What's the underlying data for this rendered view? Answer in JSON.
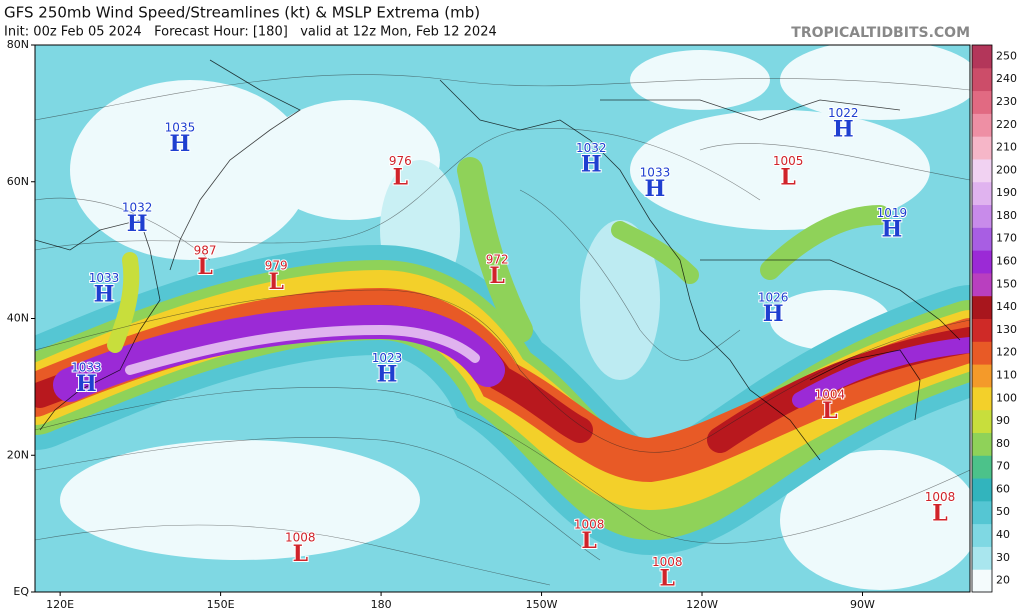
{
  "header": {
    "title": "GFS 250mb Wind Speed/Streamlines (kt) & MSLP Extrema (mb)",
    "subtitle": "Init: 00z Feb 05 2024   Forecast Hour: [180]   valid at 12z Mon, Feb 12 2024",
    "watermark": "TROPICALTIDBITS.COM"
  },
  "map": {
    "lonlim": [
      115.3,
      290.1
    ],
    "latlim": [
      0,
      80
    ],
    "lonticks": [
      {
        "value": 120,
        "label": "120E"
      },
      {
        "value": 150,
        "label": "150E"
      },
      180,
      {
        "value": 210,
        "label": "150W"
      },
      {
        "value": 240,
        "label": "120W"
      },
      {
        "value": 270,
        "label": "90W"
      }
    ],
    "latticks": [
      {
        "value": 80,
        "label": "80N"
      },
      {
        "value": 60,
        "label": "60N"
      },
      {
        "value": 40,
        "label": "40N"
      },
      {
        "value": 20,
        "label": "20N"
      },
      {
        "value": 0,
        "label": "EQ"
      }
    ],
    "systems": [
      {
        "pressure": 1035,
        "kind": "H",
        "lon": 142.4,
        "lat": 65.4
      },
      {
        "pressure": 1032,
        "kind": "H",
        "lon": 134.4,
        "lat": 53.7
      },
      {
        "pressure": 1033,
        "kind": "H",
        "lon": 128.2,
        "lat": 43.4
      },
      {
        "pressure": 1033,
        "kind": "H",
        "lon": 124.9,
        "lat": 30.3
      },
      {
        "pressure": 987,
        "kind": "L",
        "lon": 147.1,
        "lat": 47.4
      },
      {
        "pressure": 979,
        "kind": "L",
        "lon": 160.4,
        "lat": 45.2
      },
      {
        "pressure": 976,
        "kind": "L",
        "lon": 183.6,
        "lat": 60.5
      },
      {
        "pressure": 1023,
        "kind": "H",
        "lon": 181.1,
        "lat": 31.7
      },
      {
        "pressure": 972,
        "kind": "L",
        "lon": 201.7,
        "lat": 46.1
      },
      {
        "pressure": 1032,
        "kind": "H",
        "lon": 219.3,
        "lat": 62.4
      },
      {
        "pressure": 1033,
        "kind": "H",
        "lon": 231.2,
        "lat": 58.8
      },
      {
        "pressure": 1005,
        "kind": "L",
        "lon": 256.1,
        "lat": 60.5
      },
      {
        "pressure": 1022,
        "kind": "H",
        "lon": 266.4,
        "lat": 67.5
      },
      {
        "pressure": 1019,
        "kind": "H",
        "lon": 275.5,
        "lat": 52.9
      },
      {
        "pressure": 1026,
        "kind": "H",
        "lon": 253.3,
        "lat": 40.5
      },
      {
        "pressure": 1004,
        "kind": "L",
        "lon": 263.9,
        "lat": 26.3
      },
      {
        "pressure": 1008,
        "kind": "L",
        "lon": 284.5,
        "lat": 11.3
      },
      {
        "pressure": 1008,
        "kind": "L",
        "lon": 164.9,
        "lat": 5.4
      },
      {
        "pressure": 1008,
        "kind": "L",
        "lon": 218.9,
        "lat": 7.3
      },
      {
        "pressure": 1008,
        "kind": "L",
        "lon": 233.5,
        "lat": 1.8
      }
    ]
  },
  "colorbar": {
    "ticks": [
      20,
      30,
      40,
      50,
      60,
      70,
      80,
      90,
      100,
      110,
      120,
      130,
      140,
      150,
      160,
      170,
      180,
      190,
      200,
      210,
      220,
      230,
      240,
      250
    ],
    "colors": [
      "#f4fbfc",
      "#a9e6ee",
      "#7fd8e3",
      "#55c6d3",
      "#32b4bd",
      "#4cc28a",
      "#8fd259",
      "#c8de3c",
      "#f3d02a",
      "#f49a2a",
      "#e85a26",
      "#cf2a27",
      "#a8161d",
      "#b93fbf",
      "#9b2ad6",
      "#a85ee3",
      "#c88bea",
      "#e0b3ef",
      "#f1d2f2",
      "#f6b6c8",
      "#ee8fa4",
      "#e16a82",
      "#cc4d69",
      "#b3365a"
    ]
  }
}
